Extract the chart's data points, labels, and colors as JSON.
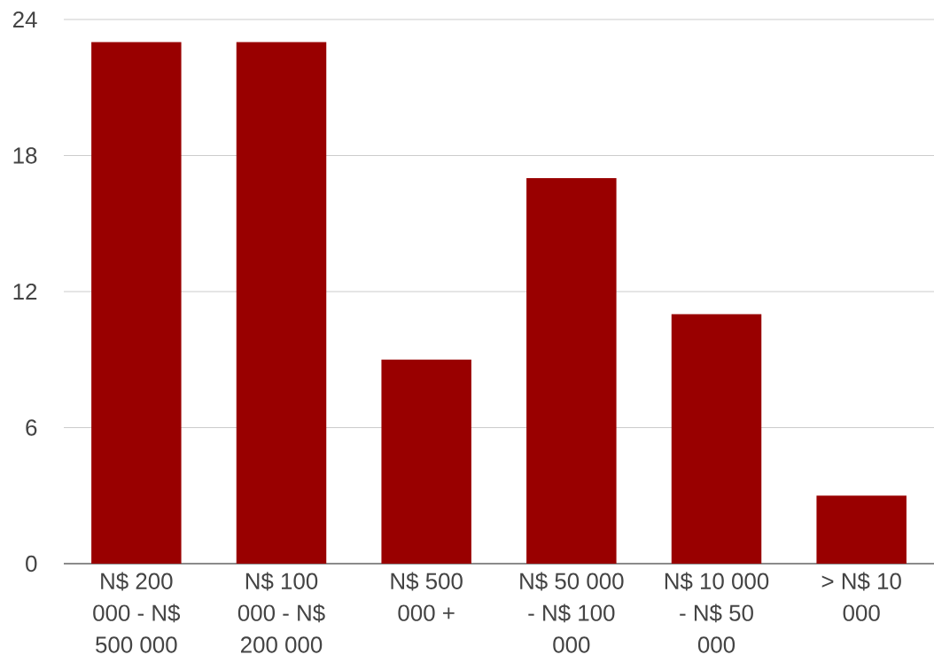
{
  "chart_data": {
    "type": "bar",
    "categories": [
      "N$ 200 000 - N$ 500 000",
      "N$ 100 000 - N$ 200 000",
      "N$ 500 000 +",
      "N$ 50 000 - N$ 100 000",
      "N$ 10 000 - N$ 50 000",
      "> N$ 10 000"
    ],
    "values": [
      23,
      23,
      9,
      17,
      11,
      3
    ],
    "color": "#990000",
    "ylim": [
      0,
      24
    ],
    "yticks": [
      0,
      6,
      12,
      18,
      24
    ],
    "grid": "y"
  }
}
